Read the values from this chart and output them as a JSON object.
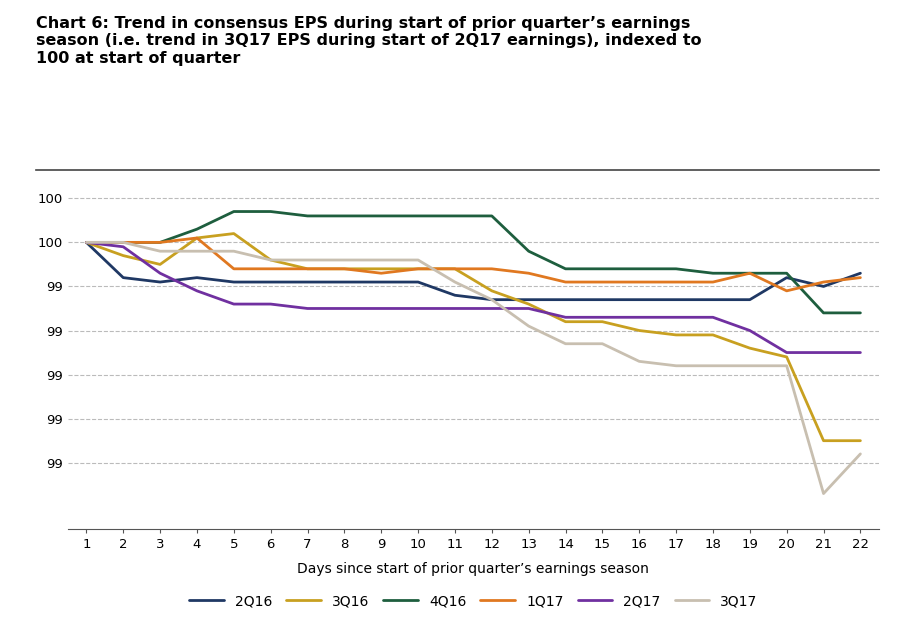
{
  "title": "Chart 6: Trend in consensus EPS during start of prior quarter’s earnings\nseason (i.e. trend in 3Q17 EPS during start of 2Q17 earnings), indexed to\n100 at start of quarter",
  "xlabel": "Days since start of prior quarter’s earnings season",
  "x_ticks": [
    1,
    2,
    3,
    4,
    5,
    6,
    7,
    8,
    9,
    10,
    11,
    12,
    13,
    14,
    15,
    16,
    17,
    18,
    19,
    20,
    21,
    22
  ],
  "series": {
    "2Q16": {
      "color": "#1f3864",
      "linewidth": 2.0,
      "data": [
        100.0,
        99.92,
        99.91,
        99.92,
        99.91,
        99.91,
        99.91,
        99.91,
        99.91,
        99.91,
        99.88,
        99.87,
        99.87,
        99.87,
        99.87,
        99.87,
        99.87,
        99.87,
        99.87,
        99.92,
        99.9,
        99.93
      ]
    },
    "3Q16": {
      "color": "#c8a020",
      "linewidth": 2.0,
      "data": [
        100.0,
        99.97,
        99.95,
        100.01,
        100.02,
        99.96,
        99.94,
        99.94,
        99.94,
        99.94,
        99.94,
        99.89,
        99.86,
        99.82,
        99.82,
        99.8,
        99.79,
        99.79,
        99.76,
        99.74,
        99.55,
        99.55
      ]
    },
    "4Q16": {
      "color": "#1e5e3e",
      "linewidth": 2.0,
      "data": [
        100.0,
        100.0,
        100.0,
        100.03,
        100.07,
        100.07,
        100.06,
        100.06,
        100.06,
        100.06,
        100.06,
        100.06,
        99.98,
        99.94,
        99.94,
        99.94,
        99.94,
        99.93,
        99.93,
        99.93,
        99.84,
        99.84
      ]
    },
    "1Q17": {
      "color": "#e07820",
      "linewidth": 2.0,
      "data": [
        100.0,
        100.0,
        100.0,
        100.01,
        99.94,
        99.94,
        99.94,
        99.94,
        99.93,
        99.94,
        99.94,
        99.94,
        99.93,
        99.91,
        99.91,
        99.91,
        99.91,
        99.91,
        99.93,
        99.89,
        99.91,
        99.92
      ]
    },
    "2Q17": {
      "color": "#7030a0",
      "linewidth": 2.0,
      "data": [
        100.0,
        99.99,
        99.93,
        99.89,
        99.86,
        99.86,
        99.85,
        99.85,
        99.85,
        99.85,
        99.85,
        99.85,
        99.85,
        99.83,
        99.83,
        99.83,
        99.83,
        99.83,
        99.8,
        99.75,
        99.75,
        99.75
      ]
    },
    "3Q17": {
      "color": "#c8bfb0",
      "linewidth": 2.0,
      "data": [
        100.0,
        100.0,
        99.98,
        99.98,
        99.98,
        99.96,
        99.96,
        99.96,
        99.96,
        99.96,
        99.91,
        99.87,
        99.81,
        99.77,
        99.77,
        99.73,
        99.72,
        99.72,
        99.72,
        99.72,
        99.43,
        99.52
      ]
    }
  },
  "ylim": [
    99.35,
    100.15
  ],
  "yticks": [
    100.1,
    100.0,
    99.9,
    99.8,
    99.7,
    99.6,
    99.5
  ],
  "background_color": "#ffffff",
  "grid_color": "#bbbbbb",
  "title_fontsize": 11.5,
  "xlabel_fontsize": 10,
  "tick_fontsize": 9.5
}
